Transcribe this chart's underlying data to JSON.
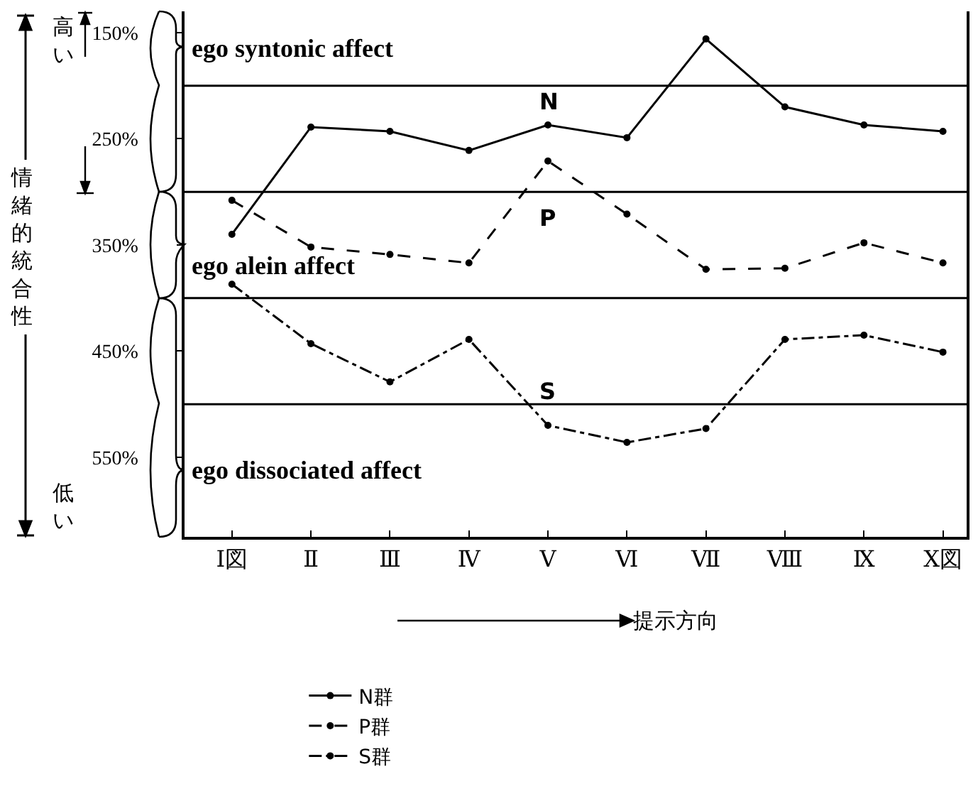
{
  "chart_data": {
    "type": "line",
    "ylabel": "情緒的統合性",
    "xlabel": "提示方向",
    "categories": [
      "Ⅰ図",
      "Ⅱ",
      "Ⅲ",
      "Ⅳ",
      "Ⅴ",
      "Ⅵ",
      "Ⅶ",
      "Ⅷ",
      "Ⅸ",
      "Ⅹ図"
    ],
    "series": [
      {
        "name": "N群",
        "color": "#000000",
        "line_style": "solid",
        "values": [
          340,
          239,
          243,
          261,
          237,
          249,
          156,
          220,
          237,
          243
        ]
      },
      {
        "name": "P群",
        "color": "#000000",
        "line_style": "dashed",
        "values": [
          308,
          352,
          359,
          367,
          271,
          321,
          373,
          372,
          348,
          367
        ]
      },
      {
        "name": "S群",
        "color": "#000000",
        "line_style": "dashdot",
        "values": [
          387,
          443,
          479,
          439,
          520,
          536,
          523,
          439,
          435,
          451
        ]
      }
    ],
    "ylim": [
      625,
      130
    ],
    "yticks": [
      {
        "value": 150,
        "label": "150%"
      },
      {
        "value": 250,
        "label": "250%"
      },
      {
        "value": 350,
        "label": "350%"
      },
      {
        "value": 450,
        "label": "450%"
      },
      {
        "value": 550,
        "label": "550%"
      }
    ],
    "ref_lines": [
      {
        "axis": "y",
        "value": 200
      },
      {
        "axis": "y",
        "value": 300
      },
      {
        "axis": "y",
        "value": 400
      },
      {
        "axis": "y",
        "value": 500
      }
    ],
    "annotations": [
      "N",
      "P",
      "S",
      "高い",
      "低い",
      "ego syntonic affect",
      "ego alein affect",
      "ego dissociated affect"
    ],
    "marker": "circle",
    "grid": false,
    "legend": "bottom"
  }
}
